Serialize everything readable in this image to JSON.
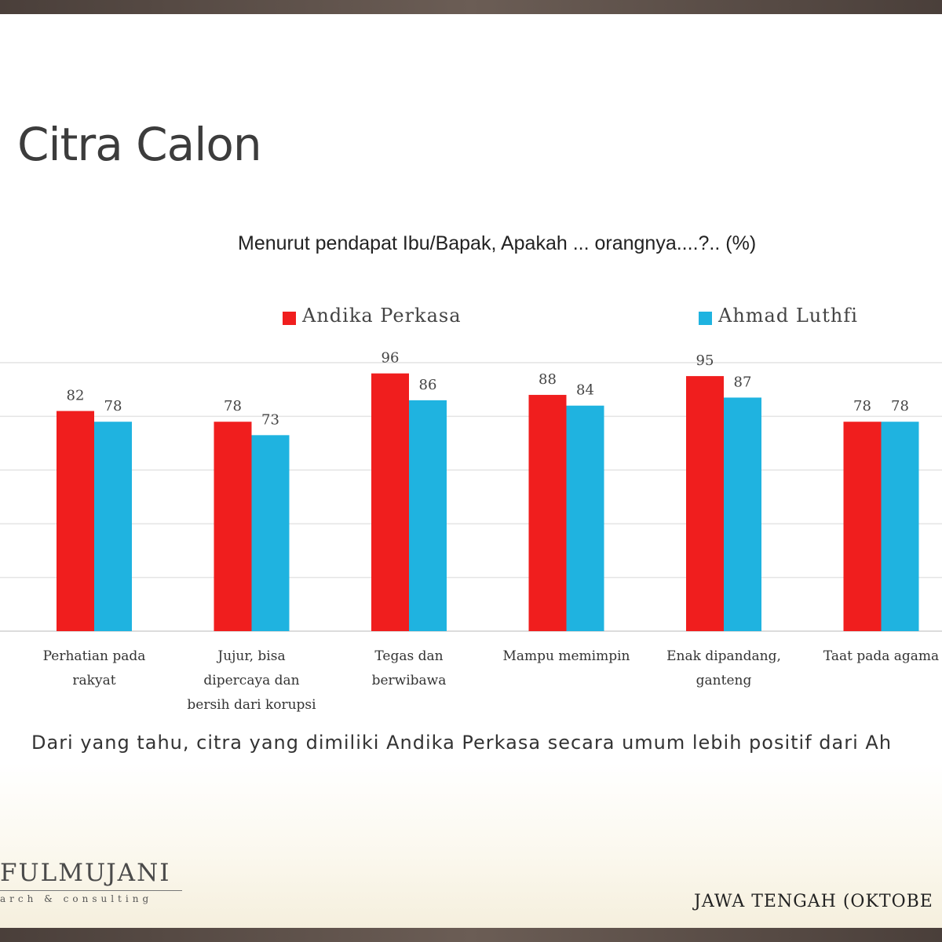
{
  "slide": {
    "title": "Citra Calon",
    "subtitle": "Menurut pendapat Ibu/Bapak, Apakah ... orangnya....?.. (%)",
    "footnote": "Dari yang tahu, citra yang dimiliki Andika Perkasa secara umum lebih positif dari Ah",
    "brand": "FULMUJANI",
    "brand_sub": "arch & consulting",
    "region": "JAWA TENGAH (OKTOBE"
  },
  "colors": {
    "andika": "#f01e1e",
    "luthfi": "#1fb3e0",
    "grid": "#e4e4e4"
  },
  "chart_data": {
    "type": "bar",
    "categories": [
      [
        "Perhatian pada",
        "rakyat"
      ],
      [
        "Jujur, bisa",
        "dipercaya dan",
        "bersih dari korupsi"
      ],
      [
        "Tegas dan",
        "berwibawa"
      ],
      [
        "Mampu memimpin"
      ],
      [
        "Enak dipandang,",
        "ganteng"
      ],
      [
        "Taat pada agama"
      ]
    ],
    "series": [
      {
        "name": "Andika Perkasa",
        "values": [
          82,
          78,
          96,
          88,
          95,
          78
        ]
      },
      {
        "name": "Ahmad Luthfi",
        "values": [
          78,
          73,
          86,
          84,
          87,
          78
        ]
      }
    ],
    "ylim": [
      0,
      100
    ],
    "grid": true,
    "legend": "top"
  }
}
